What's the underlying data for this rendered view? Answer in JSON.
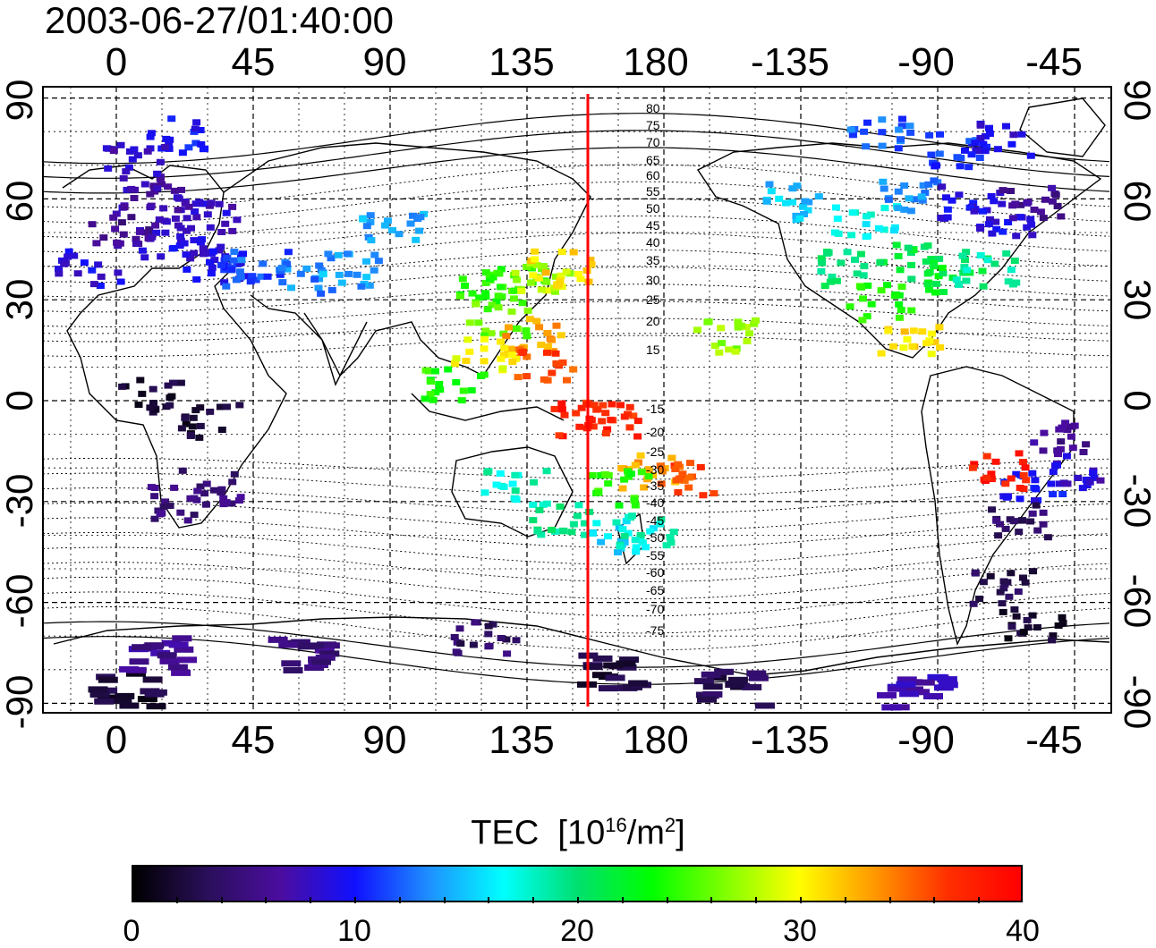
{
  "timestamp": "2003-06-27/01:40:00",
  "x_ticks": [
    "0",
    "45",
    "90",
    "135",
    "180",
    "-135",
    "-90",
    "-45"
  ],
  "y_ticks": [
    "90",
    "60",
    "30",
    "0",
    "-30",
    "-60",
    "-90"
  ],
  "contour_labels": [
    "80",
    "75",
    "70",
    "65",
    "60",
    "55",
    "50",
    "45",
    "40",
    "35",
    "30",
    "25",
    "20",
    "15",
    "-15",
    "-20",
    "-25",
    "-30",
    "-35",
    "-40",
    "-45",
    "-50",
    "-55",
    "-60",
    "-65",
    "-70",
    "-75"
  ],
  "colorbar": {
    "title_text": "TEC",
    "title_units_prefix": "[10",
    "title_units_exp": "16",
    "title_units_mid": "/m",
    "title_units_exp2": "2",
    "title_units_suffix": "]",
    "min": 0,
    "max": 40,
    "tick_labels": [
      "0",
      "10",
      "20",
      "30",
      "40"
    ],
    "colors": [
      "#000000",
      "#2a0f5a",
      "#4b0da0",
      "#1010ff",
      "#1e90ff",
      "#00ffff",
      "#00e070",
      "#00ff00",
      "#80ff00",
      "#ffff00",
      "#ff9a00",
      "#ff3000",
      "#ff0000"
    ]
  },
  "marker_line": {
    "longitude": 155,
    "color": "#ff0000"
  },
  "tec_cells": [
    {
      "lon": 10,
      "lat": 63,
      "tec": 7
    },
    {
      "lon": 20,
      "lat": 57,
      "tec": 7
    },
    {
      "lon": 30,
      "lat": 55,
      "tec": 8
    },
    {
      "lon": 0,
      "lat": 52,
      "tec": 6
    },
    {
      "lon": 15,
      "lat": 48,
      "tec": 8
    },
    {
      "lon": 25,
      "lat": 45,
      "tec": 9
    },
    {
      "lon": -10,
      "lat": 40,
      "tec": 9
    },
    {
      "lon": 35,
      "lat": 40,
      "tec": 10
    },
    {
      "lon": 45,
      "lat": 40,
      "tec": 12
    },
    {
      "lon": 60,
      "lat": 38,
      "tec": 13
    },
    {
      "lon": 75,
      "lat": 40,
      "tec": 14
    },
    {
      "lon": 90,
      "lat": 52,
      "tec": 14
    },
    {
      "lon": 120,
      "lat": 35,
      "tec": 24
    },
    {
      "lon": 130,
      "lat": 36,
      "tec": 25
    },
    {
      "lon": 140,
      "lat": 38,
      "tec": 28
    },
    {
      "lon": 145,
      "lat": 40,
      "tec": 31
    },
    {
      "lon": 125,
      "lat": 25,
      "tec": 26
    },
    {
      "lon": 135,
      "lat": 20,
      "tec": 33
    },
    {
      "lon": 140,
      "lat": 12,
      "tec": 36
    },
    {
      "lon": 120,
      "lat": 15,
      "tec": 30
    },
    {
      "lon": 110,
      "lat": 5,
      "tec": 24
    },
    {
      "lon": 150,
      "lat": -5,
      "tec": 38
    },
    {
      "lon": 175,
      "lat": -20,
      "tec": 33
    },
    {
      "lon": 185,
      "lat": -22,
      "tec": 36
    },
    {
      "lon": 165,
      "lat": -25,
      "tec": 24
    },
    {
      "lon": 130,
      "lat": -25,
      "tec": 18
    },
    {
      "lon": 145,
      "lat": -35,
      "tec": 19
    },
    {
      "lon": 165,
      "lat": -40,
      "tec": 16
    },
    {
      "lon": 172,
      "lat": -38,
      "tec": 18
    },
    {
      "lon": 200,
      "lat": 20,
      "tec": 27
    },
    {
      "lon": -120,
      "lat": 40,
      "tec": 20
    },
    {
      "lon": -100,
      "lat": 42,
      "tec": 21
    },
    {
      "lon": -85,
      "lat": 38,
      "tec": 22
    },
    {
      "lon": -110,
      "lat": 30,
      "tec": 24
    },
    {
      "lon": -100,
      "lat": 20,
      "tec": 31
    },
    {
      "lon": -75,
      "lat": 40,
      "tec": 19
    },
    {
      "lon": -140,
      "lat": 60,
      "tec": 15
    },
    {
      "lon": -115,
      "lat": 55,
      "tec": 17
    },
    {
      "lon": -100,
      "lat": 62,
      "tec": 13
    },
    {
      "lon": -80,
      "lat": 60,
      "tec": 9
    },
    {
      "lon": -70,
      "lat": 55,
      "tec": 9
    },
    {
      "lon": -60,
      "lat": 60,
      "tec": 6
    },
    {
      "lon": -85,
      "lat": 75,
      "tec": 11
    },
    {
      "lon": -110,
      "lat": 80,
      "tec": 12
    },
    {
      "lon": -70,
      "lat": 78,
      "tec": 9
    },
    {
      "lon": 20,
      "lat": 80,
      "tec": 10
    },
    {
      "lon": 5,
      "lat": 72,
      "tec": 8
    },
    {
      "lon": -50,
      "lat": -10,
      "tec": 6
    },
    {
      "lon": -45,
      "lat": -20,
      "tec": 8
    },
    {
      "lon": -60,
      "lat": -25,
      "tec": 10
    },
    {
      "lon": -65,
      "lat": -35,
      "tec": 4
    },
    {
      "lon": -70,
      "lat": -55,
      "tec": 3
    },
    {
      "lon": -60,
      "lat": -65,
      "tec": 2
    },
    {
      "lon": 30,
      "lat": -25,
      "tec": 5
    },
    {
      "lon": 20,
      "lat": -30,
      "tec": 5
    },
    {
      "lon": 10,
      "lat": 2,
      "tec": 2
    },
    {
      "lon": 30,
      "lat": -5,
      "tec": 2
    },
    {
      "lon": -70,
      "lat": -20,
      "tec": 38
    },
    {
      "lon": 160,
      "lat": -5,
      "tec": 37
    },
    {
      "lon": 0,
      "lat": -85,
      "tec": 2
    },
    {
      "lon": 60,
      "lat": -75,
      "tec": 5
    },
    {
      "lon": 120,
      "lat": -70,
      "tec": 4
    },
    {
      "lon": 160,
      "lat": -80,
      "tec": 2
    },
    {
      "lon": -160,
      "lat": -85,
      "tec": 3
    },
    {
      "lon": -100,
      "lat": -85,
      "tec": 7
    },
    {
      "lon": 10,
      "lat": -75,
      "tec": 6
    }
  ]
}
